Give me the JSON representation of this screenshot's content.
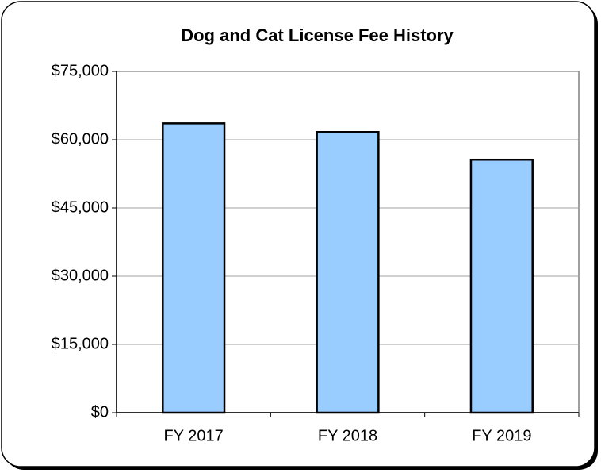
{
  "chart_data": {
    "type": "bar",
    "title": "Dog and Cat License Fee History",
    "categories": [
      "FY 2017",
      "FY 2018",
      "FY 2019"
    ],
    "values": [
      63600,
      61700,
      55600
    ],
    "color": "#99ccff",
    "ylim": [
      0,
      75000
    ],
    "yticks": [
      {
        "value": 0,
        "label": "$0"
      },
      {
        "value": 15000,
        "label": "$15,000"
      },
      {
        "value": 30000,
        "label": "$30,000"
      },
      {
        "value": 45000,
        "label": "$45,000"
      },
      {
        "value": 60000,
        "label": "$60,000"
      },
      {
        "value": 75000,
        "label": "$75,000"
      }
    ],
    "grid": true
  }
}
